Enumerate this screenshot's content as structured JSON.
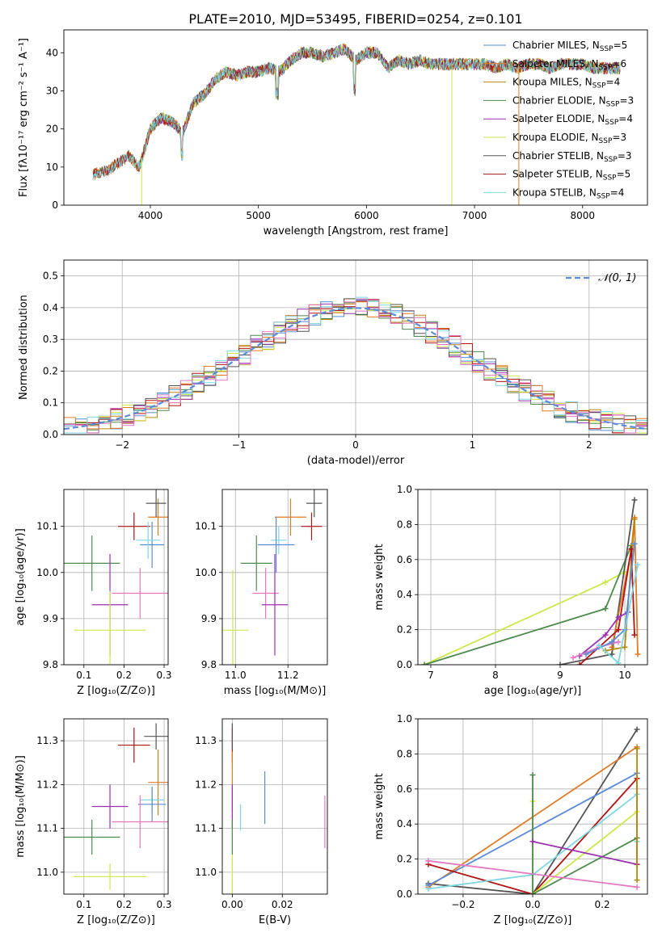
{
  "figure": {
    "title": "PLATE=2010, MJD=53495, FIBERID=0254, z=0.101"
  },
  "colors": {
    "miles_chabrier": "#5b8bd6",
    "miles_salpeter": "#e07b26",
    "miles_kroupa": "#b8860b",
    "elodie_chabrier": "#4c8a4c",
    "elodie_salpeter": "#9a32b0",
    "elodie_kroupa": "#cfe64c",
    "stelib_chabrier": "#555555",
    "stelib_salpeter": "#b01414",
    "stelib_kroupa": "#7fd7e0",
    "pink": "#e377c2",
    "gauss": "#5b8bd6"
  },
  "chart_data": [
    {
      "id": "spectrum",
      "type": "line",
      "title": "PLATE=2010, MJD=53495, FIBERID=0254, z=0.101",
      "xlabel": "wavelength [Angstrom, rest frame]",
      "ylabel": "Flux [fλ10⁻¹⁷ erg cm⁻² s⁻¹ A⁻¹]",
      "xlim": [
        3200,
        8600
      ],
      "ylim": [
        0,
        46
      ],
      "xticks": [
        "4000",
        "5000",
        "6000",
        "7000",
        "8000"
      ],
      "yticks": [
        "0",
        "10",
        "20",
        "30",
        "40"
      ],
      "continuum": {
        "x": [
          3450,
          3600,
          3700,
          3800,
          3900,
          4000,
          4100,
          4200,
          4300,
          4400,
          4500,
          4600,
          4700,
          4800,
          4900,
          5000,
          5100,
          5200,
          5300,
          5400,
          5500,
          5600,
          5700,
          5800,
          5900,
          6000,
          6100,
          6200,
          6300,
          6400,
          6500,
          6600,
          6700,
          6800,
          6900,
          7000,
          7100,
          7200,
          7300,
          7400,
          7500,
          7600,
          7700,
          7800,
          7900,
          8000,
          8100,
          8200,
          8300,
          8400
        ],
        "y": [
          8,
          9,
          11,
          13,
          10,
          20,
          23,
          22,
          19,
          27,
          29,
          33,
          35,
          34,
          35,
          35,
          36,
          35,
          38,
          40,
          40,
          39,
          40,
          41,
          38,
          40,
          40,
          36,
          38,
          37,
          38,
          37,
          37,
          37,
          37,
          37,
          37,
          36,
          37,
          36,
          37,
          37,
          36,
          37,
          37,
          37,
          36,
          36,
          36,
          36
        ]
      },
      "legend_position": "upper right",
      "legend": [
        {
          "label": "Chabrier MILES, N",
          "sub": "SSP",
          "tail": "=5",
          "color": "miles_chabrier"
        },
        {
          "label": "Salpeter MILES, N",
          "sub": "SSP",
          "tail": "=6",
          "color": "miles_salpeter"
        },
        {
          "label": "Kroupa MILES, N",
          "sub": "SSP",
          "tail": "=4",
          "color": "miles_kroupa"
        },
        {
          "label": "Chabrier ELODIE, N",
          "sub": "SSP",
          "tail": "=3",
          "color": "elodie_chabrier"
        },
        {
          "label": "Salpeter ELODIE, N",
          "sub": "SSP",
          "tail": "=4",
          "color": "elodie_salpeter"
        },
        {
          "label": "Kroupa ELODIE, N",
          "sub": "SSP",
          "tail": "=3",
          "color": "elodie_kroupa"
        },
        {
          "label": "Chabrier STELIB, N",
          "sub": "SSP",
          "tail": "=3",
          "color": "stelib_chabrier"
        },
        {
          "label": "Salpeter STELIB, N",
          "sub": "SSP",
          "tail": "=5",
          "color": "stelib_salpeter"
        },
        {
          "label": "Kroupa STELIB, N",
          "sub": "SSP",
          "tail": "=4",
          "color": "stelib_kroupa"
        }
      ]
    },
    {
      "id": "residuals",
      "type": "line",
      "xlabel": "(data-model)/error",
      "ylabel": "Normed distribution",
      "xlim": [
        -2.5,
        2.5
      ],
      "ylim": [
        0,
        0.55
      ],
      "xticks": [
        "−2",
        "−1",
        "0",
        "1",
        "2"
      ],
      "yticks": [
        "0.0",
        "0.1",
        "0.2",
        "0.3",
        "0.4",
        "0.5"
      ],
      "legend": "𝒩(0, 1)",
      "legend_position": "upper right",
      "bin_width": 0.1,
      "bin_start": -2.5,
      "gauss": {
        "mean": 0,
        "sigma": 1,
        "color": "gauss"
      }
    },
    {
      "id": "age-vs-Z",
      "type": "scatter",
      "xlabel": "Z [log₁₀(Z/Z⊙)]",
      "ylabel": "age  [log₁₀(age/yr)]",
      "xlim": [
        0.05,
        0.31
      ],
      "ylim": [
        9.8,
        10.18
      ],
      "xticks": [
        "0.1",
        "0.2",
        "0.3"
      ],
      "yticks": [
        "9.8",
        "9.9",
        "10.0",
        "10.1"
      ],
      "points": [
        {
          "x": 0.285,
          "xerr": 0.025,
          "y": 10.12,
          "yerr": 0.04,
          "color": "miles_salpeter"
        },
        {
          "x": 0.28,
          "xerr": 0.025,
          "y": 10.15,
          "yerr": 0.03,
          "color": "stelib_chabrier"
        },
        {
          "x": 0.225,
          "xerr": 0.04,
          "y": 10.1,
          "yerr": 0.03,
          "color": "stelib_salpeter"
        },
        {
          "x": 0.27,
          "xerr": 0.03,
          "y": 10.06,
          "yerr": 0.05,
          "color": "miles_chabrier"
        },
        {
          "x": 0.26,
          "xerr": 0.03,
          "y": 10.07,
          "yerr": 0.04,
          "color": "stelib_kroupa"
        },
        {
          "x": 0.12,
          "xerr": 0.07,
          "y": 10.02,
          "yerr": 0.06,
          "color": "elodie_chabrier"
        },
        {
          "x": 0.24,
          "xerr": 0.07,
          "y": 9.955,
          "yerr": 0.055,
          "color": "pink"
        },
        {
          "x": 0.165,
          "xerr": 0.045,
          "y": 9.93,
          "yerr": 0.11,
          "color": "elodie_salpeter"
        },
        {
          "x": 0.165,
          "xerr": 0.09,
          "y": 9.875,
          "yerr": 0.085,
          "color": "elodie_kroupa"
        }
      ]
    },
    {
      "id": "age-vs-mass",
      "type": "scatter",
      "xlabel": "mass [log₁₀(M/M⊙)]",
      "ylabel": "",
      "xlim": [
        10.95,
        11.35
      ],
      "ylim": [
        9.8,
        10.18
      ],
      "xticks": [
        "11.0",
        "11.2"
      ],
      "yticks": [
        "9.8",
        "9.9",
        "10.0",
        "10.1"
      ],
      "points": [
        {
          "x": 11.3,
          "xerr": 0.03,
          "y": 10.15,
          "yerr": 0.03,
          "color": "stelib_chabrier"
        },
        {
          "x": 11.21,
          "xerr": 0.06,
          "y": 10.12,
          "yerr": 0.04,
          "color": "miles_salpeter"
        },
        {
          "x": 11.29,
          "xerr": 0.04,
          "y": 10.1,
          "yerr": 0.03,
          "color": "stelib_salpeter"
        },
        {
          "x": 11.165,
          "xerr": 0.03,
          "y": 10.07,
          "yerr": 0.03,
          "color": "stelib_kroupa"
        },
        {
          "x": 11.155,
          "xerr": 0.07,
          "y": 10.06,
          "yerr": 0.06,
          "color": "miles_chabrier"
        },
        {
          "x": 11.08,
          "xerr": 0.06,
          "y": 10.02,
          "yerr": 0.06,
          "color": "elodie_chabrier"
        },
        {
          "x": 11.115,
          "xerr": 0.05,
          "y": 9.955,
          "yerr": 0.055,
          "color": "pink"
        },
        {
          "x": 11.15,
          "xerr": 0.05,
          "y": 9.93,
          "yerr": 0.11,
          "color": "elodie_salpeter"
        },
        {
          "x": 10.99,
          "xerr": 0.06,
          "y": 9.875,
          "yerr": 0.13,
          "color": "elodie_kroupa"
        }
      ]
    },
    {
      "id": "weight-vs-age",
      "type": "line",
      "xlabel": "age  [log₁₀(age/yr)]",
      "ylabel": "mass weight",
      "xlim": [
        6.8,
        10.35
      ],
      "ylim": [
        0,
        1
      ],
      "xticks": [
        "7",
        "8",
        "9",
        "10"
      ],
      "yticks": [
        "0.0",
        "0.2",
        "0.4",
        "0.6",
        "0.8",
        "1.0"
      ],
      "series": [
        {
          "color": "elodie_kroupa",
          "x": [
            6.9,
            9.7,
            10.0
          ],
          "y": [
            0.0,
            0.47,
            0.53
          ]
        },
        {
          "color": "elodie_chabrier",
          "x": [
            6.9,
            9.7,
            10.1
          ],
          "y": [
            0.0,
            0.32,
            0.68
          ]
        },
        {
          "color": "stelib_chabrier",
          "x": [
            9.0,
            9.8,
            10.15
          ],
          "y": [
            0.0,
            0.06,
            0.94
          ]
        },
        {
          "color": "miles_salpeter",
          "x": [
            9.8,
            10.1,
            10.15,
            10.2
          ],
          "y": [
            0.1,
            0.65,
            0.84,
            0.06
          ]
        },
        {
          "color": "miles_kroupa",
          "x": [
            9.7,
            10.0,
            10.15
          ],
          "y": [
            0.08,
            0.1,
            0.83
          ]
        },
        {
          "color": "stelib_salpeter",
          "x": [
            9.3,
            9.9,
            10.1,
            10.15
          ],
          "y": [
            0.0,
            0.2,
            0.66,
            0.17
          ]
        },
        {
          "color": "elodie_salpeter",
          "x": [
            9.3,
            9.7,
            9.9,
            10.05
          ],
          "y": [
            0.05,
            0.17,
            0.27,
            0.3
          ]
        },
        {
          "color": "pink",
          "x": [
            9.2,
            9.6,
            9.9
          ],
          "y": [
            0.04,
            0.1,
            0.13
          ]
        },
        {
          "color": "miles_chabrier",
          "x": [
            9.4,
            9.8,
            10.0,
            10.15
          ],
          "y": [
            0.06,
            0.13,
            0.2,
            0.69
          ]
        },
        {
          "color": "stelib_kroupa",
          "x": [
            9.6,
            9.9,
            10.2
          ],
          "y": [
            0.11,
            0.01,
            0.57
          ]
        }
      ]
    },
    {
      "id": "mass-vs-Z",
      "type": "scatter",
      "xlabel": "Z [log₁₀(Z/Z⊙)]",
      "ylabel": "mass [log₁₀(M/M⊙)]",
      "xlim": [
        0.05,
        0.31
      ],
      "ylim": [
        10.95,
        11.35
      ],
      "xticks": [
        "0.1",
        "0.2",
        "0.3"
      ],
      "yticks": [
        "11.0",
        "11.1",
        "11.2",
        "11.3"
      ],
      "points": [
        {
          "x": 0.28,
          "xerr": 0.03,
          "y": 11.31,
          "yerr": 0.03,
          "color": "stelib_chabrier"
        },
        {
          "x": 0.225,
          "xerr": 0.04,
          "y": 11.29,
          "yerr": 0.04,
          "color": "stelib_salpeter"
        },
        {
          "x": 0.285,
          "xerr": 0.025,
          "y": 11.205,
          "yerr": 0.075,
          "color": "miles_salpeter"
        },
        {
          "x": 0.27,
          "xerr": 0.03,
          "y": 11.165,
          "yerr": 0.03,
          "color": "stelib_kroupa"
        },
        {
          "x": 0.27,
          "xerr": 0.035,
          "y": 11.155,
          "yerr": 0.04,
          "color": "miles_chabrier"
        },
        {
          "x": 0.165,
          "xerr": 0.045,
          "y": 11.15,
          "yerr": 0.05,
          "color": "elodie_salpeter"
        },
        {
          "x": 0.24,
          "xerr": 0.07,
          "y": 11.115,
          "yerr": 0.06,
          "color": "pink"
        },
        {
          "x": 0.12,
          "xerr": 0.07,
          "y": 11.08,
          "yerr": 0.04,
          "color": "elodie_chabrier"
        },
        {
          "x": 0.165,
          "xerr": 0.09,
          "y": 10.99,
          "yerr": 0.03,
          "color": "elodie_kroupa"
        }
      ]
    },
    {
      "id": "mass-vs-ebv",
      "type": "scatter",
      "xlabel": "E(B-V)",
      "ylabel": "",
      "xlim": [
        -0.004,
        0.038
      ],
      "ylim": [
        10.95,
        11.35
      ],
      "xticks": [
        "0.00",
        "0.02"
      ],
      "yticks": [
        "11.0",
        "11.1",
        "11.2",
        "11.3"
      ],
      "points": [
        {
          "x": 0.0,
          "xerr": 0,
          "y": 11.29,
          "yerr": 0.04,
          "color": "stelib_salpeter"
        },
        {
          "x": 0.0,
          "xerr": 0,
          "y": 11.205,
          "yerr": 0.07,
          "color": "miles_salpeter"
        },
        {
          "x": 0.0,
          "xerr": 0,
          "y": 11.31,
          "yerr": 0.03,
          "color": "stelib_chabrier"
        },
        {
          "x": 0.0,
          "xerr": 0,
          "y": 11.15,
          "yerr": 0.05,
          "color": "elodie_salpeter"
        },
        {
          "x": 0.0,
          "xerr": 0,
          "y": 11.08,
          "yerr": 0.04,
          "color": "elodie_chabrier"
        },
        {
          "x": 0.0,
          "xerr": 0,
          "y": 10.99,
          "yerr": 0.05,
          "color": "elodie_kroupa"
        },
        {
          "x": 0.0033,
          "xerr": 0,
          "y": 11.125,
          "yerr": 0.03,
          "color": "stelib_kroupa"
        },
        {
          "x": 0.013,
          "xerr": 0,
          "y": 11.17,
          "yerr": 0.06,
          "color": "miles_chabrier"
        },
        {
          "x": 0.037,
          "xerr": 0,
          "y": 11.115,
          "yerr": 0.06,
          "color": "pink"
        }
      ]
    },
    {
      "id": "weight-vs-Z",
      "type": "line",
      "xlabel": "Z [log₁₀(Z/Z⊙)]",
      "ylabel": "mass weight",
      "xlim": [
        -0.33,
        0.33
      ],
      "ylim": [
        0,
        1
      ],
      "xticks": [
        "−0.2",
        "0.0",
        "0.2"
      ],
      "yticks": [
        "0.0",
        "0.2",
        "0.4",
        "0.6",
        "0.8",
        "1.0"
      ],
      "series": [
        {
          "color": "stelib_chabrier",
          "x": [
            -0.3,
            0.0,
            0.3
          ],
          "y": [
            0.06,
            0.0,
            0.94
          ]
        },
        {
          "color": "miles_salpeter",
          "x": [
            -0.3,
            0.3
          ],
          "y": [
            0.04,
            0.84
          ]
        },
        {
          "color": "miles_chabrier",
          "x": [
            -0.3,
            0.3
          ],
          "y": [
            0.05,
            0.69
          ]
        },
        {
          "color": "stelib_salpeter",
          "x": [
            -0.3,
            0.0,
            0.3,
            0.3
          ],
          "y": [
            0.17,
            0.0,
            0.66,
            0.17
          ]
        },
        {
          "color": "stelib_kroupa",
          "x": [
            -0.3,
            0.0,
            0.3,
            0.3
          ],
          "y": [
            0.03,
            0.11,
            0.57,
            0.3
          ]
        },
        {
          "color": "elodie_kroupa",
          "x": [
            0.0,
            0.0,
            0.3
          ],
          "y": [
            0.53,
            0.0,
            0.47
          ]
        },
        {
          "color": "elodie_chabrier",
          "x": [
            0.0,
            0.0,
            0.3
          ],
          "y": [
            0.68,
            0.0,
            0.32
          ]
        },
        {
          "color": "elodie_salpeter",
          "x": [
            0.0,
            0.3
          ],
          "y": [
            0.3,
            0.17
          ]
        },
        {
          "color": "pink",
          "x": [
            -0.3,
            0.3
          ],
          "y": [
            0.19,
            0.04
          ]
        },
        {
          "color": "miles_kroupa",
          "x": [
            0.3,
            0.3
          ],
          "y": [
            0.83,
            0.08
          ]
        }
      ]
    }
  ]
}
